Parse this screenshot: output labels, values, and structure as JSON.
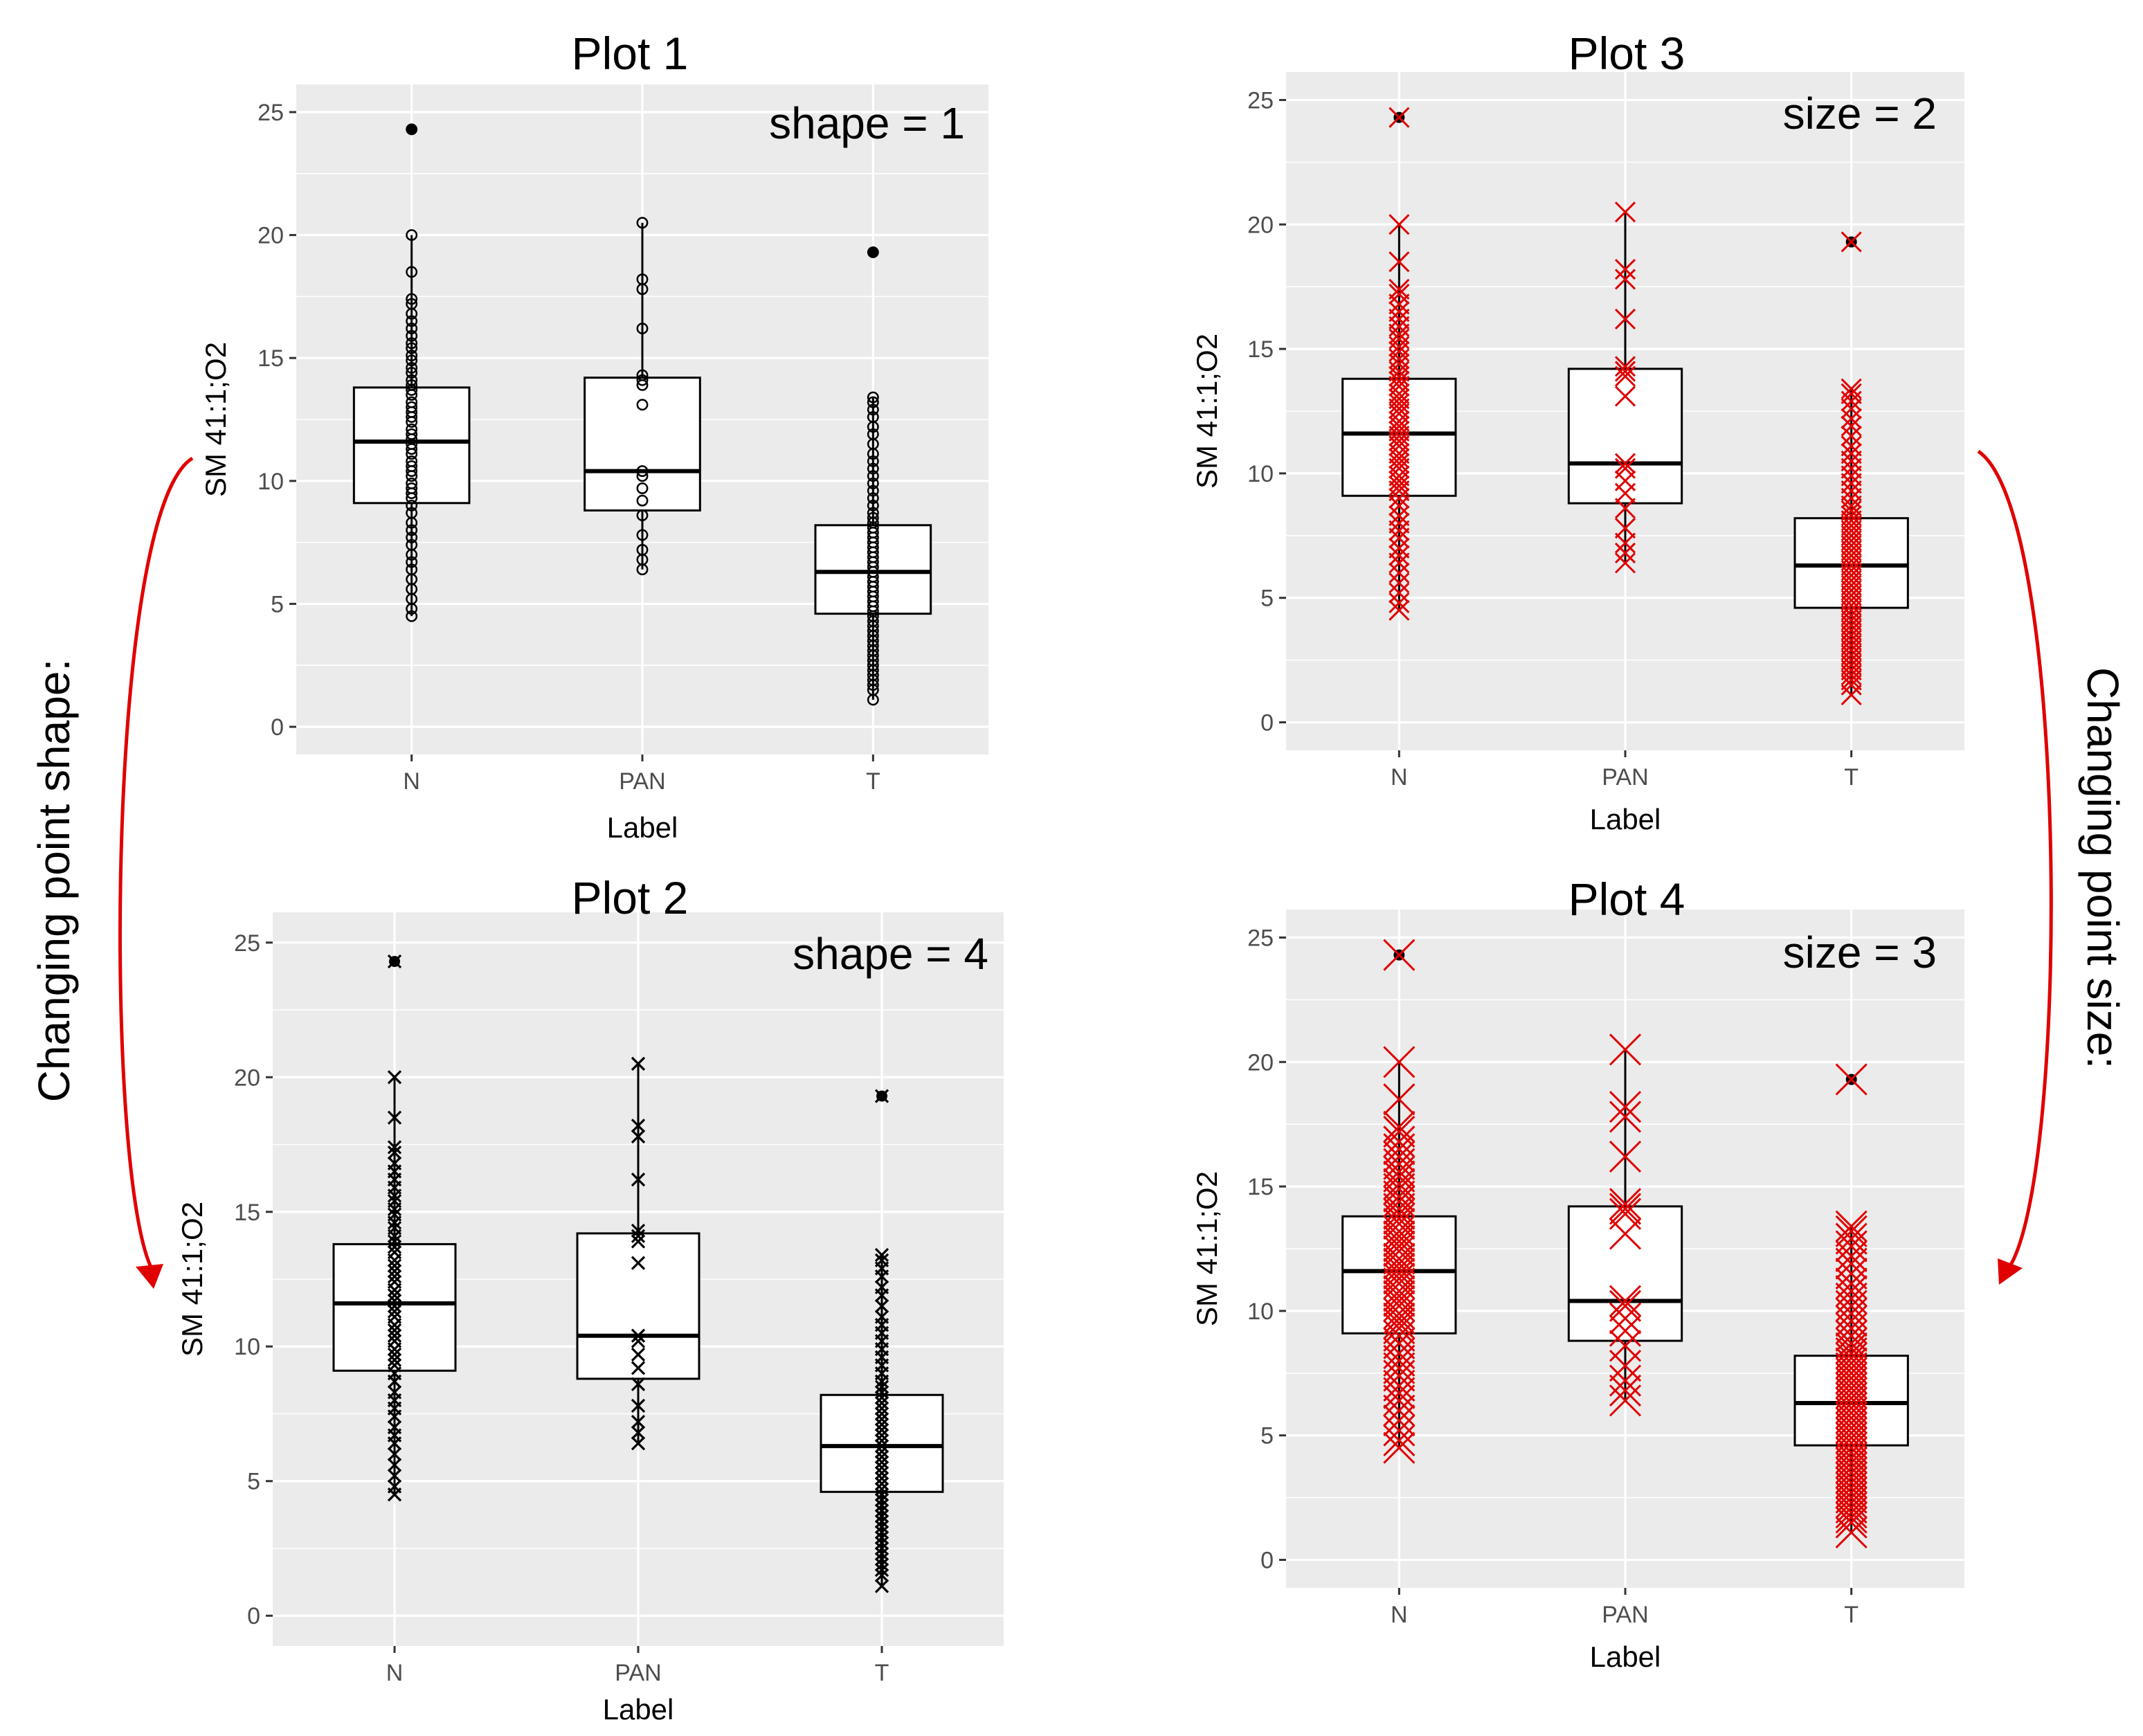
{
  "colors": {
    "panel": "#ebebeb",
    "grid": "#ffffff",
    "box": "#000000",
    "red_points": "#e00000",
    "arrow": "#e00000"
  },
  "side_labels": {
    "left": "Changing point shape:",
    "right": "Changing point size:"
  },
  "chart_data": [
    {
      "type": "box",
      "title": "Plot 1",
      "annotation": "shape = 1",
      "xlabel": "Label",
      "ylabel": "SM 41:1;O2",
      "categories": [
        "N",
        "PAN",
        "T"
      ],
      "ylim": [
        0,
        25
      ],
      "yticks": [
        0,
        5,
        10,
        15,
        20,
        25
      ],
      "grid": true,
      "point_shape": "circle-open",
      "point_size": 1,
      "point_color": "#000000",
      "boxes": [
        {
          "category": "N",
          "lower": 9.1,
          "median": 11.6,
          "upper": 13.8,
          "whisker_low": 4.5,
          "whisker_high": 20.0,
          "outliers": [
            24.3
          ]
        },
        {
          "category": "PAN",
          "lower": 8.8,
          "median": 10.4,
          "upper": 14.2,
          "whisker_low": 6.4,
          "whisker_high": 20.5,
          "outliers": []
        },
        {
          "category": "T",
          "lower": 4.6,
          "median": 6.3,
          "upper": 8.2,
          "whisker_low": 1.1,
          "whisker_high": 13.4,
          "outliers": [
            19.3
          ]
        }
      ],
      "points": {
        "N": [
          24.3,
          20.0,
          18.5,
          17.4,
          17.2,
          16.8,
          16.5,
          16.2,
          15.9,
          15.6,
          15.4,
          15.1,
          14.9,
          14.6,
          14.4,
          14.1,
          13.9,
          13.7,
          13.5,
          13.2,
          13.0,
          12.8,
          12.6,
          12.4,
          12.1,
          11.9,
          11.7,
          11.5,
          11.3,
          11.1,
          10.8,
          10.6,
          10.4,
          10.2,
          9.9,
          9.7,
          9.5,
          9.3,
          9.0,
          8.7,
          8.3,
          8.0,
          7.7,
          7.4,
          7.0,
          6.7,
          6.4,
          6.0,
          5.6,
          5.2,
          4.8,
          4.5
        ],
        "PAN": [
          20.5,
          18.2,
          17.8,
          16.2,
          14.3,
          14.1,
          13.9,
          13.1,
          10.4,
          10.2,
          9.7,
          9.2,
          8.6,
          7.8,
          7.2,
          6.8,
          6.4
        ],
        "T": [
          19.3,
          13.4,
          13.2,
          12.9,
          12.6,
          12.2,
          11.9,
          11.5,
          11.1,
          10.8,
          10.5,
          10.2,
          9.9,
          9.6,
          9.3,
          9.0,
          8.7,
          8.5,
          8.3,
          8.1,
          7.9,
          7.7,
          7.5,
          7.3,
          7.1,
          6.9,
          6.7,
          6.5,
          6.3,
          6.1,
          5.9,
          5.7,
          5.5,
          5.3,
          5.1,
          4.9,
          4.7,
          4.5,
          4.3,
          4.1,
          3.9,
          3.7,
          3.5,
          3.3,
          3.1,
          2.9,
          2.7,
          2.5,
          2.3,
          2.1,
          1.9,
          1.7,
          1.5,
          1.1
        ]
      }
    },
    {
      "type": "box",
      "title": "Plot 2",
      "annotation": "shape = 4",
      "xlabel": "Label",
      "ylabel": "SM 41:1;O2",
      "categories": [
        "N",
        "PAN",
        "T"
      ],
      "ylim": [
        0,
        25
      ],
      "yticks": [
        0,
        5,
        10,
        15,
        20,
        25
      ],
      "grid": true,
      "point_shape": "x",
      "point_size": 1,
      "point_color": "#000000",
      "boxes": [
        {
          "category": "N",
          "lower": 9.1,
          "median": 11.6,
          "upper": 13.8,
          "whisker_low": 4.5,
          "whisker_high": 20.0,
          "outliers": [
            24.3
          ]
        },
        {
          "category": "PAN",
          "lower": 8.8,
          "median": 10.4,
          "upper": 14.2,
          "whisker_low": 6.4,
          "whisker_high": 20.5,
          "outliers": []
        },
        {
          "category": "T",
          "lower": 4.6,
          "median": 6.3,
          "upper": 8.2,
          "whisker_low": 1.1,
          "whisker_high": 13.4,
          "outliers": [
            19.3
          ]
        }
      ],
      "points": {
        "N": [
          24.3,
          20.0,
          18.5,
          17.4,
          17.2,
          16.8,
          16.5,
          16.2,
          15.9,
          15.6,
          15.4,
          15.1,
          14.9,
          14.6,
          14.4,
          14.1,
          13.9,
          13.7,
          13.5,
          13.2,
          13.0,
          12.8,
          12.6,
          12.4,
          12.1,
          11.9,
          11.7,
          11.5,
          11.3,
          11.1,
          10.8,
          10.6,
          10.4,
          10.2,
          9.9,
          9.7,
          9.5,
          9.3,
          9.0,
          8.7,
          8.3,
          8.0,
          7.7,
          7.4,
          7.0,
          6.7,
          6.4,
          6.0,
          5.6,
          5.2,
          4.8,
          4.5
        ],
        "PAN": [
          20.5,
          18.2,
          17.8,
          16.2,
          14.3,
          14.1,
          13.9,
          13.1,
          10.4,
          10.2,
          9.7,
          9.2,
          8.6,
          7.8,
          7.2,
          6.8,
          6.4
        ],
        "T": [
          19.3,
          13.4,
          13.2,
          12.9,
          12.6,
          12.2,
          11.9,
          11.5,
          11.1,
          10.8,
          10.5,
          10.2,
          9.9,
          9.6,
          9.3,
          9.0,
          8.7,
          8.5,
          8.3,
          8.1,
          7.9,
          7.7,
          7.5,
          7.3,
          7.1,
          6.9,
          6.7,
          6.5,
          6.3,
          6.1,
          5.9,
          5.7,
          5.5,
          5.3,
          5.1,
          4.9,
          4.7,
          4.5,
          4.3,
          4.1,
          3.9,
          3.7,
          3.5,
          3.3,
          3.1,
          2.9,
          2.7,
          2.5,
          2.3,
          2.1,
          1.9,
          1.7,
          1.5,
          1.1
        ]
      }
    },
    {
      "type": "box",
      "title": "Plot 3",
      "annotation": "size = 2",
      "xlabel": "Label",
      "ylabel": "SM 41:1;O2",
      "categories": [
        "N",
        "PAN",
        "T"
      ],
      "ylim": [
        0,
        25
      ],
      "yticks": [
        0,
        5,
        10,
        15,
        20,
        25
      ],
      "grid": true,
      "point_shape": "x",
      "point_size": 2,
      "point_color": "#e00000",
      "boxes": [
        {
          "category": "N",
          "lower": 9.1,
          "median": 11.6,
          "upper": 13.8,
          "whisker_low": 4.5,
          "whisker_high": 20.0,
          "outliers": [
            24.3
          ]
        },
        {
          "category": "PAN",
          "lower": 8.8,
          "median": 10.4,
          "upper": 14.2,
          "whisker_low": 6.4,
          "whisker_high": 20.5,
          "outliers": []
        },
        {
          "category": "T",
          "lower": 4.6,
          "median": 6.3,
          "upper": 8.2,
          "whisker_low": 1.1,
          "whisker_high": 13.4,
          "outliers": [
            19.3
          ]
        }
      ],
      "points": {
        "N": [
          24.3,
          20.0,
          18.5,
          17.4,
          17.2,
          16.8,
          16.5,
          16.2,
          15.9,
          15.6,
          15.4,
          15.1,
          14.9,
          14.6,
          14.4,
          14.1,
          13.9,
          13.7,
          13.5,
          13.2,
          13.0,
          12.8,
          12.6,
          12.4,
          12.1,
          11.9,
          11.7,
          11.5,
          11.3,
          11.1,
          10.8,
          10.6,
          10.4,
          10.2,
          9.9,
          9.7,
          9.5,
          9.3,
          9.0,
          8.7,
          8.3,
          8.0,
          7.7,
          7.4,
          7.0,
          6.7,
          6.4,
          6.0,
          5.6,
          5.2,
          4.8,
          4.5
        ],
        "PAN": [
          20.5,
          18.2,
          17.8,
          16.2,
          14.3,
          14.1,
          13.9,
          13.1,
          10.4,
          10.2,
          9.7,
          9.2,
          8.6,
          7.8,
          7.2,
          6.8,
          6.4
        ],
        "T": [
          19.3,
          13.4,
          13.2,
          12.9,
          12.6,
          12.2,
          11.9,
          11.5,
          11.1,
          10.8,
          10.5,
          10.2,
          9.9,
          9.6,
          9.3,
          9.0,
          8.7,
          8.5,
          8.3,
          8.1,
          7.9,
          7.7,
          7.5,
          7.3,
          7.1,
          6.9,
          6.7,
          6.5,
          6.3,
          6.1,
          5.9,
          5.7,
          5.5,
          5.3,
          5.1,
          4.9,
          4.7,
          4.5,
          4.3,
          4.1,
          3.9,
          3.7,
          3.5,
          3.3,
          3.1,
          2.9,
          2.7,
          2.5,
          2.3,
          2.1,
          1.9,
          1.7,
          1.5,
          1.1
        ]
      }
    },
    {
      "type": "box",
      "title": "Plot 4",
      "annotation": "size = 3",
      "xlabel": "Label",
      "ylabel": "SM 41:1;O2",
      "categories": [
        "N",
        "PAN",
        "T"
      ],
      "ylim": [
        0,
        25
      ],
      "yticks": [
        0,
        5,
        10,
        15,
        20,
        25
      ],
      "grid": true,
      "point_shape": "x",
      "point_size": 3,
      "point_color": "#e00000",
      "boxes": [
        {
          "category": "N",
          "lower": 9.1,
          "median": 11.6,
          "upper": 13.8,
          "whisker_low": 4.5,
          "whisker_high": 20.0,
          "outliers": [
            24.3
          ]
        },
        {
          "category": "PAN",
          "lower": 8.8,
          "median": 10.4,
          "upper": 14.2,
          "whisker_low": 6.4,
          "whisker_high": 20.5,
          "outliers": []
        },
        {
          "category": "T",
          "lower": 4.6,
          "median": 6.3,
          "upper": 8.2,
          "whisker_low": 1.1,
          "whisker_high": 13.4,
          "outliers": [
            19.3
          ]
        }
      ],
      "points": {
        "N": [
          24.3,
          20.0,
          18.5,
          17.4,
          17.2,
          16.8,
          16.5,
          16.2,
          15.9,
          15.6,
          15.4,
          15.1,
          14.9,
          14.6,
          14.4,
          14.1,
          13.9,
          13.7,
          13.5,
          13.2,
          13.0,
          12.8,
          12.6,
          12.4,
          12.1,
          11.9,
          11.7,
          11.5,
          11.3,
          11.1,
          10.8,
          10.6,
          10.4,
          10.2,
          9.9,
          9.7,
          9.5,
          9.3,
          9.0,
          8.7,
          8.3,
          8.0,
          7.7,
          7.4,
          7.0,
          6.7,
          6.4,
          6.0,
          5.6,
          5.2,
          4.8,
          4.5
        ],
        "PAN": [
          20.5,
          18.2,
          17.8,
          16.2,
          14.3,
          14.1,
          13.9,
          13.1,
          10.4,
          10.2,
          9.7,
          9.2,
          8.6,
          7.8,
          7.2,
          6.8,
          6.4
        ],
        "T": [
          19.3,
          13.4,
          13.2,
          12.9,
          12.6,
          12.2,
          11.9,
          11.5,
          11.1,
          10.8,
          10.5,
          10.2,
          9.9,
          9.6,
          9.3,
          9.0,
          8.7,
          8.5,
          8.3,
          8.1,
          7.9,
          7.7,
          7.5,
          7.3,
          7.1,
          6.9,
          6.7,
          6.5,
          6.3,
          6.1,
          5.9,
          5.7,
          5.5,
          5.3,
          5.1,
          4.9,
          4.7,
          4.5,
          4.3,
          4.1,
          3.9,
          3.7,
          3.5,
          3.3,
          3.1,
          2.9,
          2.7,
          2.5,
          2.3,
          2.1,
          1.9,
          1.7,
          1.5,
          1.1
        ]
      }
    }
  ]
}
